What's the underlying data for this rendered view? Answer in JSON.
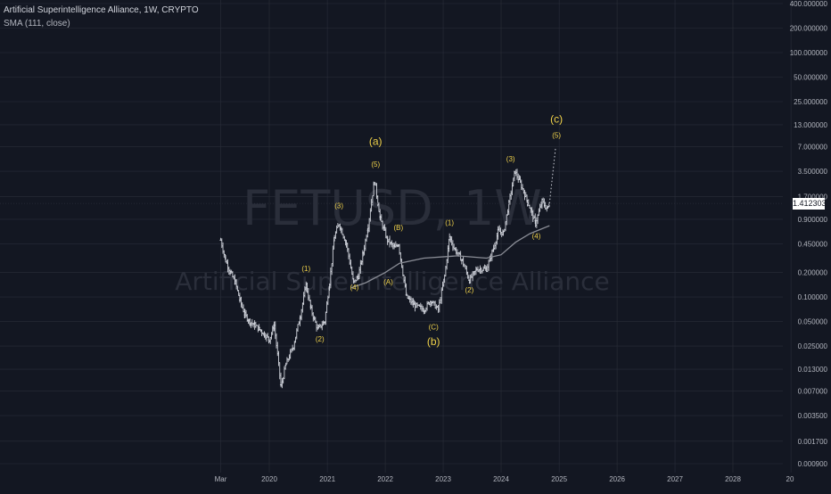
{
  "legend": {
    "symbol_line": "Artificial Superintelligence Alliance, 1W, CRYPTO",
    "indicator_line": "SMA (111, close)"
  },
  "watermark": {
    "ticker": "FETUSD, 1W",
    "name": "Artificial Superintelligence Alliance"
  },
  "last_price": "1.412303",
  "colors": {
    "background": "#131722",
    "grid": "#2a2e39",
    "axis_text": "#b2b5be",
    "candles": "#d1d4dc",
    "sma": "#8a8d96",
    "wave_labels": "#f0d24a",
    "watermark": "#2a2e3a"
  },
  "chart_data": {
    "type": "line",
    "title": "Artificial Superintelligence Alliance, 1W, CRYPTO",
    "scale": "log",
    "x_ticks": [
      "Mar",
      "2020",
      "2021",
      "2022",
      "2023",
      "2024",
      "2025",
      "2026",
      "2027",
      "2028",
      "20"
    ],
    "y_ticks": [
      "400.000000",
      "200.000000",
      "100.000000",
      "50.000000",
      "25.000000",
      "13.000000",
      "7.000000",
      "3.500000",
      "1.700000",
      "0.900000",
      "0.450000",
      "0.200000",
      "0.100000",
      "0.050000",
      "0.025000",
      "0.013000",
      "0.007000",
      "0.003500",
      "0.001700",
      "0.000900"
    ],
    "ylim": [
      0.0008,
      400
    ],
    "grid": true,
    "series": [
      {
        "name": "FETUSD",
        "style": "ohlc-bars",
        "points": [
          [
            "2019-03-01",
            0.5
          ],
          [
            "2019-04-01",
            0.28
          ],
          [
            "2019-05-01",
            0.2
          ],
          [
            "2019-06-01",
            0.15
          ],
          [
            "2019-07-01",
            0.09
          ],
          [
            "2019-08-01",
            0.06
          ],
          [
            "2019-09-01",
            0.05
          ],
          [
            "2019-10-01",
            0.045
          ],
          [
            "2019-11-01",
            0.04
          ],
          [
            "2019-12-01",
            0.035
          ],
          [
            "2020-01-01",
            0.03
          ],
          [
            "2020-02-01",
            0.045
          ],
          [
            "2020-03-15",
            0.008
          ],
          [
            "2020-04-15",
            0.015
          ],
          [
            "2020-06-01",
            0.025
          ],
          [
            "2020-07-15",
            0.06
          ],
          [
            "2020-08-20",
            0.14
          ],
          [
            "2020-09-20",
            0.07
          ],
          [
            "2020-11-01",
            0.04
          ],
          [
            "2020-12-15",
            0.05
          ],
          [
            "2021-01-15",
            0.15
          ],
          [
            "2021-02-15",
            0.55
          ],
          [
            "2021-03-15",
            0.8
          ],
          [
            "2021-05-01",
            0.45
          ],
          [
            "2021-06-15",
            0.15
          ],
          [
            "2021-07-15",
            0.18
          ],
          [
            "2021-08-15",
            0.35
          ],
          [
            "2021-09-15",
            0.75
          ],
          [
            "2021-10-25",
            2.7
          ],
          [
            "2021-12-01",
            0.9
          ],
          [
            "2022-01-15",
            0.5
          ],
          [
            "2022-03-01",
            0.4
          ],
          [
            "2022-03-25",
            0.45
          ],
          [
            "2022-05-15",
            0.1
          ],
          [
            "2022-07-01",
            0.08
          ],
          [
            "2022-09-01",
            0.07
          ],
          [
            "2022-10-15",
            0.09
          ],
          [
            "2022-12-01",
            0.07
          ],
          [
            "2023-01-10",
            0.18
          ],
          [
            "2023-02-10",
            0.55
          ],
          [
            "2023-03-10",
            0.4
          ],
          [
            "2023-05-01",
            0.28
          ],
          [
            "2023-06-15",
            0.16
          ],
          [
            "2023-08-01",
            0.22
          ],
          [
            "2023-10-01",
            0.22
          ],
          [
            "2023-11-15",
            0.4
          ],
          [
            "2023-12-15",
            0.65
          ],
          [
            "2024-01-15",
            0.6
          ],
          [
            "2024-03-28",
            3.5
          ],
          [
            "2024-05-01",
            2.5
          ],
          [
            "2024-06-15",
            1.5
          ],
          [
            "2024-08-05",
            0.8
          ],
          [
            "2024-09-15",
            1.5
          ],
          [
            "2024-10-15",
            1.2
          ],
          [
            "2024-11-01",
            1.41
          ]
        ]
      },
      {
        "name": "SMA (111, close)",
        "style": "line",
        "points": [
          [
            "2021-06-01",
            0.13
          ],
          [
            "2021-09-01",
            0.15
          ],
          [
            "2022-01-01",
            0.2
          ],
          [
            "2022-04-01",
            0.26
          ],
          [
            "2022-09-01",
            0.3
          ],
          [
            "2023-04-01",
            0.32
          ],
          [
            "2023-10-01",
            0.3
          ],
          [
            "2024-01-01",
            0.33
          ],
          [
            "2024-04-01",
            0.47
          ],
          [
            "2024-07-01",
            0.6
          ],
          [
            "2024-11-01",
            0.75
          ]
        ]
      },
      {
        "name": "projection",
        "style": "dotted",
        "points": [
          [
            "2024-11-01",
            1.41
          ],
          [
            "2024-12-10",
            7.0
          ]
        ]
      }
    ],
    "annotations": [
      {
        "text": "(a)",
        "date": "2021-11-01",
        "price": 8.0,
        "size": "large"
      },
      {
        "text": "(5)",
        "date": "2021-11-01",
        "price": 4.2,
        "size": "small"
      },
      {
        "text": "(3)",
        "date": "2021-03-15",
        "price": 1.3,
        "size": "small"
      },
      {
        "text": "(4)",
        "date": "2021-06-20",
        "price": 0.13,
        "size": "small"
      },
      {
        "text": "(1)",
        "date": "2020-08-20",
        "price": 0.22,
        "size": "small"
      },
      {
        "text": "(2)",
        "date": "2020-11-15",
        "price": 0.03,
        "size": "small"
      },
      {
        "text": "(B)",
        "date": "2022-03-25",
        "price": 0.7,
        "size": "small"
      },
      {
        "text": "(A)",
        "date": "2022-01-20",
        "price": 0.15,
        "size": "small"
      },
      {
        "text": "(C)",
        "date": "2022-11-01",
        "price": 0.042,
        "size": "small"
      },
      {
        "text": "(b)",
        "date": "2022-11-01",
        "price": 0.028,
        "size": "large"
      },
      {
        "text": "(1)",
        "date": "2023-02-10",
        "price": 0.8,
        "size": "small"
      },
      {
        "text": "(2)",
        "date": "2023-06-15",
        "price": 0.12,
        "size": "small"
      },
      {
        "text": "(3)",
        "date": "2024-03-01",
        "price": 4.9,
        "size": "small"
      },
      {
        "text": "(4)",
        "date": "2024-08-10",
        "price": 0.55,
        "size": "small"
      },
      {
        "text": "(c)",
        "date": "2024-12-15",
        "price": 15.0,
        "size": "large"
      },
      {
        "text": "(5)",
        "date": "2024-12-15",
        "price": 9.5,
        "size": "small"
      }
    ]
  }
}
